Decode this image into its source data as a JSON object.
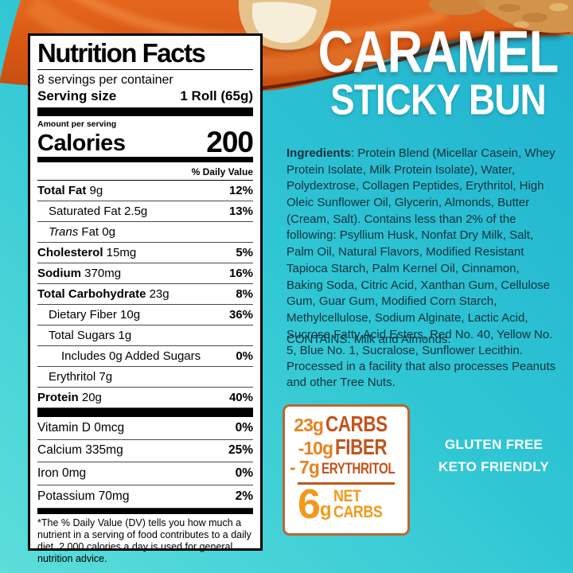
{
  "product": {
    "title_line1": "CARAMEL",
    "title_line2": "STICKY BUN",
    "badge_line1": "GLUTEN FREE",
    "badge_line2": "KETO FRIENDLY"
  },
  "nutrition": {
    "title": "Nutrition Facts",
    "servings_per_container": "8 servings per container",
    "serving_size_label": "Serving size",
    "serving_size_value": "1 Roll (65g)",
    "amount_per_serving": "Amount per serving",
    "calories_label": "Calories",
    "calories_value": "200",
    "daily_value_header": "% Daily Value",
    "rows": [
      {
        "name": "Total Fat",
        "amount": "9g",
        "dv": "12%",
        "bold": true,
        "indent": 0
      },
      {
        "name": "Saturated Fat",
        "amount": "2.5g",
        "dv": "13%",
        "indent": 1
      },
      {
        "name_italic": "Trans",
        "name": " Fat",
        "amount": "0g",
        "dv": "",
        "indent": 1
      },
      {
        "name": "Cholesterol",
        "amount": "15mg",
        "dv": "5%",
        "bold": true,
        "indent": 0
      },
      {
        "name": "Sodium",
        "amount": "370mg",
        "dv": "16%",
        "bold": true,
        "indent": 0
      },
      {
        "name": "Total Carbohydrate",
        "amount": "23g",
        "dv": "8%",
        "bold": true,
        "indent": 0
      },
      {
        "name": "Dietary Fiber",
        "amount": "10g",
        "dv": "36%",
        "indent": 1
      },
      {
        "name": "Total Sugars",
        "amount": "1g",
        "dv": "",
        "indent": 1
      },
      {
        "name": "Includes 0g Added Sugars",
        "amount": "",
        "dv": "0%",
        "indent": 2
      },
      {
        "name": "Erythritol",
        "amount": "7g",
        "dv": "",
        "indent": 1
      },
      {
        "name": "Protein",
        "amount": "20g",
        "dv": "40%",
        "bold": true,
        "indent": 0
      }
    ],
    "micronutrients": [
      {
        "name": "Vitamin D",
        "amount": "0mcg",
        "dv": "0%"
      },
      {
        "name": "Calcium",
        "amount": "335mg",
        "dv": "25%"
      },
      {
        "name": "Iron",
        "amount": "0mg",
        "dv": "0%"
      },
      {
        "name": "Potassium",
        "amount": "70mg",
        "dv": "2%"
      }
    ],
    "footnote": "*The % Daily Value (DV) tells you how much a nutrient in a serving of food contributes to a daily diet. 2,000 calories a day is used for general nutrition advice."
  },
  "ingredients": {
    "label": "Ingredients",
    "text": ": Protein Blend (Micellar Casein, Whey Protein Isolate, Milk Protein Isolate), Water, Polydextrose, Collagen Peptides, Erythritol, High Oleic Sunflower Oil, Glycerin, Almonds, Butter (Cream, Salt). Contains less than 2% of the following: Psyllium Husk, Nonfat Dry Milk, Salt, Palm Oil, Natural Flavors, Modified Resistant Tapioca Starch, Palm Kernel Oil, Cinnamon, Baking Soda, Citric Acid, Xanthan Gum, Cellulose Gum, Guar Gum, Modified Corn Starch, Methylcellulose, Sodium Alginate, Lactic Acid, Sucrose Fatty Acid Esters, Red No. 40, Yellow No. 5, Blue No. 1, Sucralose, Sunflower Lecithin."
  },
  "allergen_statement": "CONTAINS: Milk and Almonds.",
  "facility_statement": "Processed in a facility that also processes Peanuts and other Tree Nuts.",
  "net_carbs": {
    "lines": [
      {
        "num": "23g",
        "word": "CARBS"
      },
      {
        "num": "-10g",
        "word": "FIBER"
      },
      {
        "num": "- 7g",
        "word": "ERYTHRITOL"
      }
    ],
    "result_num": "6",
    "result_unit": "g",
    "result_word_line1": "NET",
    "result_word_line2": "CARBS"
  },
  "colors": {
    "teal_background_top": "#1fb1cf",
    "teal_background_bottom": "#5cdeda",
    "caramel_orange": "#d85813",
    "burnt_orange": "#c3541c",
    "golden_orange": "#f2991c",
    "label_border": "#000000"
  }
}
